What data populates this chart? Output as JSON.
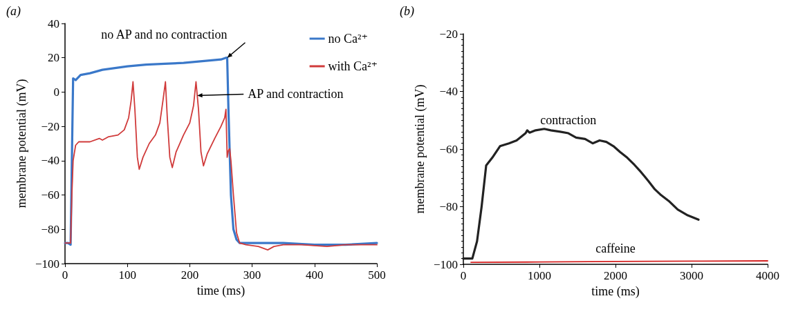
{
  "chart_data": [
    {
      "type": "line",
      "title": "(a)",
      "xlabel": "time (ms)",
      "ylabel": "membrane potential (mV)",
      "xlim": [
        0,
        500
      ],
      "xticks": [
        0,
        100,
        200,
        300,
        400,
        500
      ],
      "ylim": [
        -100,
        40
      ],
      "yticks": [
        -100,
        -80,
        -60,
        -40,
        -20,
        0,
        20,
        40
      ],
      "legend": "top right",
      "marker": "none",
      "line_style": "solid",
      "annotations": [
        {
          "text": "no AP and no contraction",
          "x": 260,
          "y": 20
        },
        {
          "text": "AP and contraction",
          "x": 212,
          "y": -2
        }
      ],
      "series": [
        {
          "name": "no Ca²⁺",
          "color": "#3a78c9",
          "x": [
            0,
            5,
            9,
            11,
            13,
            17,
            25,
            40,
            60,
            80,
            100,
            130,
            160,
            190,
            220,
            250,
            258,
            260,
            262,
            266,
            270,
            275,
            280,
            300,
            350,
            400,
            450,
            500
          ],
          "values": [
            -88,
            -88,
            -89,
            -40,
            8,
            7,
            10,
            11,
            13,
            14,
            15,
            16,
            16.5,
            17,
            18,
            19,
            20,
            20,
            -10,
            -60,
            -80,
            -86,
            -88,
            -88,
            -88,
            -89,
            -89,
            -88
          ]
        },
        {
          "name": "with Ca²⁺",
          "color": "#d03a3a",
          "x": [
            0,
            5,
            9,
            11,
            13,
            17,
            22,
            40,
            55,
            60,
            70,
            85,
            95,
            102,
            106,
            109,
            112,
            116,
            119,
            125,
            135,
            145,
            152,
            157,
            161,
            164,
            168,
            172,
            178,
            190,
            200,
            206,
            210,
            212,
            214,
            218,
            222,
            228,
            240,
            250,
            256,
            258,
            260,
            262,
            264,
            266,
            270,
            275,
            280,
            290,
            310,
            325,
            335,
            350,
            380,
            420,
            450,
            480,
            500
          ],
          "values": [
            -88,
            -88,
            -88,
            -60,
            -40,
            -31,
            -29,
            -29,
            -27,
            -28,
            -26,
            -25,
            -22,
            -15,
            -5,
            6,
            -10,
            -38,
            -45,
            -38,
            -30,
            -25,
            -18,
            -5,
            6,
            -15,
            -38,
            -44,
            -35,
            -25,
            -18,
            -8,
            6,
            -2,
            -10,
            -35,
            -43,
            -36,
            -27,
            -20,
            -15,
            -10,
            -38,
            -34,
            -33,
            -40,
            -60,
            -82,
            -88,
            -89,
            -90,
            -92,
            -90,
            -89,
            -89,
            -90,
            -89,
            -89,
            -89
          ]
        }
      ]
    },
    {
      "type": "line",
      "title": "(b)",
      "xlabel": "time (ms)",
      "ylabel": "membrane potential (mV)",
      "xlim": [
        0,
        4000
      ],
      "xticks": [
        0,
        1000,
        2000,
        3000,
        4000
      ],
      "ylim": [
        -100,
        -20
      ],
      "yticks": [
        -100,
        -80,
        -60,
        -40,
        -20
      ],
      "legend": false,
      "marker": "none",
      "line_style": "solid",
      "series": [
        {
          "name": "contraction",
          "color": "#222222",
          "x": [
            0,
            60,
            118,
            180,
            240,
            300,
            380,
            482,
            600,
            700,
            818,
            840,
            870,
            950,
            1064,
            1150,
            1273,
            1380,
            1482,
            1600,
            1700,
            1791,
            1880,
            1973,
            2060,
            2155,
            2250,
            2336,
            2430,
            2518,
            2600,
            2700,
            2818,
            2950,
            3091
          ],
          "values": [
            -98,
            -98,
            -98,
            -92,
            -80,
            -65.7,
            -63,
            -59,
            -58,
            -57,
            -54.5,
            -53.5,
            -54.3,
            -53.5,
            -53,
            -53.5,
            -54,
            -54.5,
            -56,
            -56.5,
            -58,
            -57,
            -57.5,
            -59,
            -61,
            -63,
            -65.5,
            -68,
            -71,
            -74,
            -76,
            -78,
            -81,
            -83,
            -84.5
          ]
        },
        {
          "name": "caffeine",
          "color": "#d42020",
          "x": [
            100,
            1000,
            2000,
            3000,
            4000
          ],
          "values": [
            -99.3,
            -99.2,
            -99,
            -98.9,
            -98.8
          ]
        }
      ]
    }
  ]
}
